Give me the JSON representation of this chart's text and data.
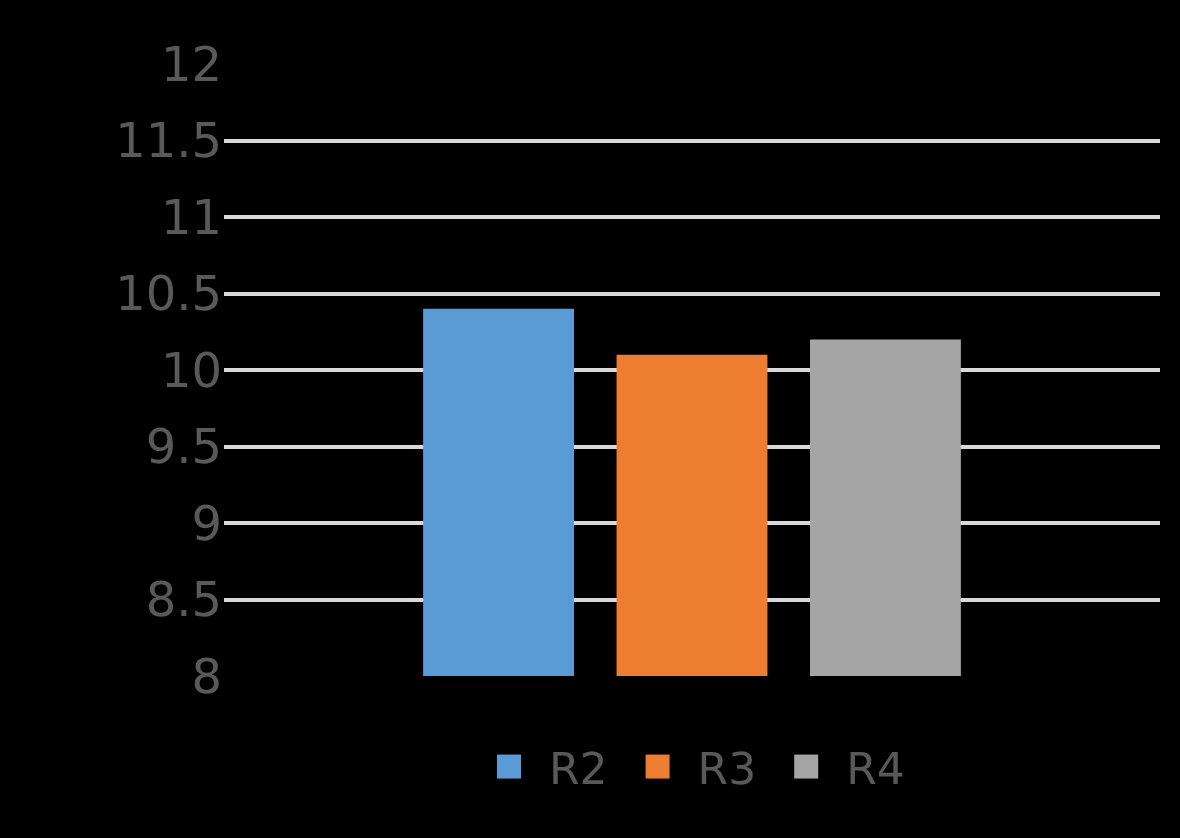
{
  "chart_data": {
    "type": "bar",
    "categories": [
      null
    ],
    "series": [
      {
        "name": "R2",
        "color": "#5b9bd5",
        "values": [
          10.4
        ]
      },
      {
        "name": "R3",
        "color": "#ed7d31",
        "values": [
          10.1
        ]
      },
      {
        "name": "R4",
        "color": "#a5a5a5",
        "values": [
          10.2
        ]
      }
    ],
    "ylim": [
      8,
      12
    ],
    "yticks": [
      8,
      8.5,
      9,
      9.5,
      10,
      10.5,
      11,
      11.5,
      12
    ],
    "grid": "y",
    "legend": "bottom",
    "tick_labels": "y"
  }
}
